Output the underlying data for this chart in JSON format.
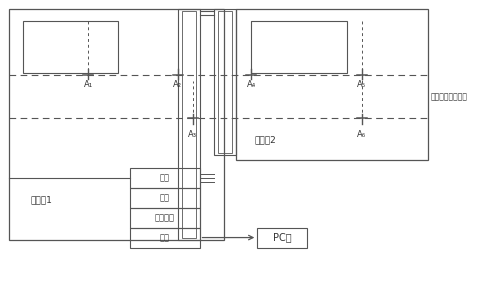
{
  "label_A1": "A₁",
  "label_A2": "A₂",
  "label_A3": "A₃",
  "label_A4": "A₄",
  "label_A5": "A₅",
  "label_A6": "A₆",
  "zone1_label": "监测区1",
  "zone2_label": "监测区2",
  "pipeline_label": "湿天燃气集输管线",
  "box_labels": [
    "滤波",
    "调节",
    "数据采集",
    "计算"
  ],
  "pc_label": "PC端",
  "line_color": "#555555",
  "text_color": "#333333"
}
